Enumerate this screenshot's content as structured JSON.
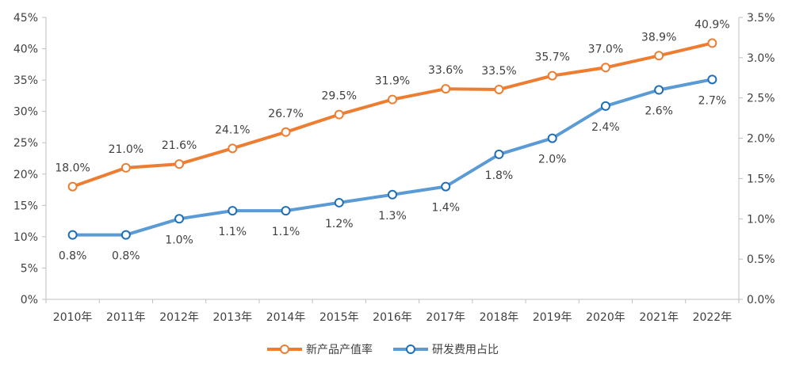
{
  "chart_data": {
    "type": "line",
    "categories": [
      "2010年",
      "2011年",
      "2012年",
      "2013年",
      "2014年",
      "2015年",
      "2016年",
      "2017年",
      "2018年",
      "2019年",
      "2020年",
      "2021年",
      "2022年"
    ],
    "series": [
      {
        "name": "新产品产值率",
        "axis": "left",
        "color": "#ED7D31",
        "values": [
          18.0,
          21.0,
          21.6,
          24.1,
          26.7,
          29.5,
          31.9,
          33.6,
          33.5,
          35.7,
          37.0,
          38.9,
          40.9
        ],
        "labels": [
          "18.0%",
          "21.0%",
          "21.6%",
          "24.1%",
          "26.7%",
          "29.5%",
          "31.9%",
          "33.6%",
          "33.5%",
          "35.7%",
          "37.0%",
          "38.9%",
          "40.9%"
        ],
        "label_position": "above"
      },
      {
        "name": "研发费用占比",
        "axis": "right",
        "color": "#5B9BD5",
        "values": [
          0.8,
          0.8,
          1.0,
          1.1,
          1.1,
          1.2,
          1.3,
          1.4,
          1.8,
          2.0,
          2.4,
          2.6,
          2.73
        ],
        "labels": [
          "0.8%",
          "0.8%",
          "1.0%",
          "1.1%",
          "1.1%",
          "1.2%",
          "1.3%",
          "1.4%",
          "1.8%",
          "2.0%",
          "2.4%",
          "2.6%",
          "2.7%"
        ],
        "label_position": "below"
      }
    ],
    "y_left": {
      "min": 0,
      "max": 45,
      "ticks": [
        "0%",
        "5%",
        "10%",
        "15%",
        "20%",
        "25%",
        "30%",
        "35%",
        "40%",
        "45%"
      ]
    },
    "y_right": {
      "min": 0,
      "max": 3.5,
      "ticks": [
        "0.0%",
        "0.5%",
        "1.0%",
        "1.5%",
        "2.0%",
        "2.5%",
        "3.0%",
        "3.5%"
      ]
    },
    "grid": false,
    "legend_position": "bottom"
  }
}
